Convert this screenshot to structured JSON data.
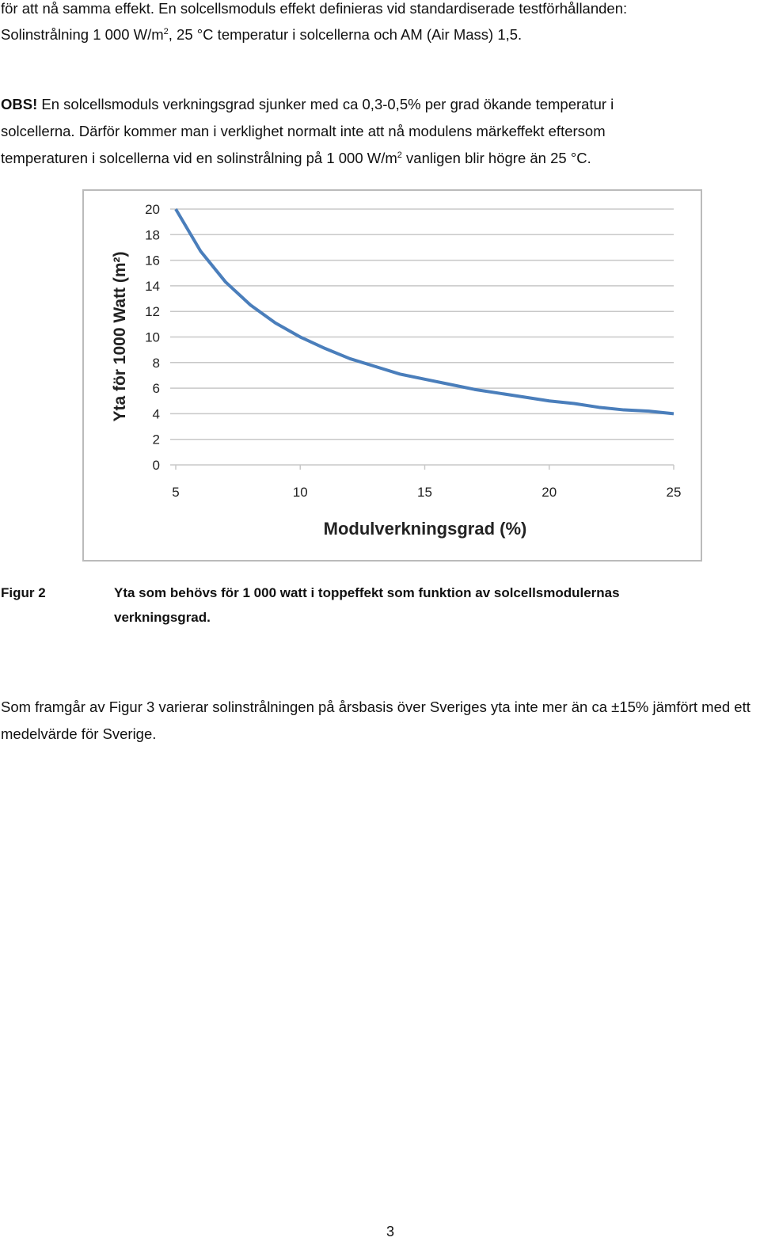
{
  "paragraph_1": {
    "line_1": "för att nå samma effekt. En solcellsmoduls effekt definieras vid standardiserade testförhållanden:",
    "line_2": [
      "Solinstrålning 1 000 W/m",
      "2",
      ", 25 °C temperatur i solcellerna och AM (Air Mass) 1,5."
    ]
  },
  "paragraph_2": {
    "lead": "OBS!",
    "line_1": " En solcellsmoduls verkningsgrad sjunker med ca 0,3-0,5% per grad ökande temperatur i",
    "line_2": "solcellerna. Därför kommer man i verklighet normalt inte att nå modulens märkeffekt eftersom",
    "line_3": [
      "temperaturen i solcellerna vid en solinstrålning på 1 000 W/m",
      "2",
      " vanligen blir högre än 25 °C."
    ]
  },
  "chart_data": {
    "type": "line",
    "xlabel": "Modulverkningsgrad (%)",
    "ylabel": "Yta för 1000 Watt (m²)",
    "x": [
      5,
      6,
      7,
      8,
      9,
      10,
      11,
      12,
      13,
      14,
      15,
      16,
      17,
      18,
      19,
      20,
      21,
      22,
      23,
      24,
      25
    ],
    "series": [
      {
        "name": "Yta",
        "color": "#4a7ebb",
        "values": [
          20,
          16.7,
          14.3,
          12.5,
          11.1,
          10,
          9.1,
          8.3,
          7.7,
          7.1,
          6.7,
          6.3,
          5.9,
          5.6,
          5.3,
          5,
          4.8,
          4.5,
          4.3,
          4.2,
          4
        ]
      }
    ],
    "xlim": [
      5,
      25
    ],
    "xticks": [
      5,
      10,
      15,
      20,
      25
    ],
    "ylim": [
      0,
      20
    ],
    "yticks": [
      0,
      2,
      4,
      6,
      8,
      10,
      12,
      14,
      16,
      18,
      20
    ],
    "grid": true
  },
  "caption": {
    "label": "Figur 2",
    "text": "Yta som behövs för 1 000 watt i toppeffekt som funktion av solcellsmodulernas verkningsgrad."
  },
  "paragraph_3": "Som framgår av Figur 3 varierar solinstrålningen på årsbasis över Sveriges yta inte mer än ca ±15% jämfört med ett medelvärde för Sverige.",
  "page_number": "3"
}
